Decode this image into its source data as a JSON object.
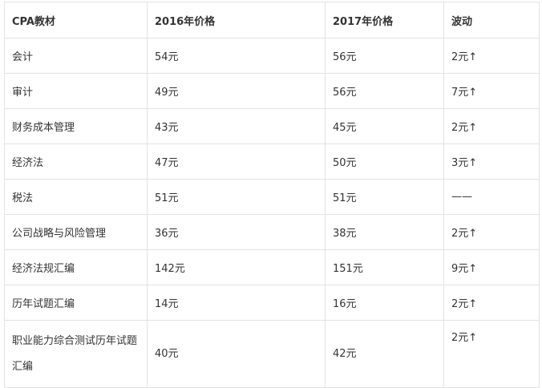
{
  "table": {
    "header": [
      "CPA教材",
      "2016年价格",
      "2017年价格",
      "波动"
    ],
    "rows": [
      [
        "会计",
        "54元",
        "56元",
        "2元↑"
      ],
      [
        "审计",
        "49元",
        "56元",
        "7元↑"
      ],
      [
        "财务成本管理",
        "43元",
        "45元",
        "2元↑"
      ],
      [
        "经济法",
        "47元",
        "50元",
        "3元↑"
      ],
      [
        "税法",
        "51元",
        "51元",
        "——"
      ],
      [
        "公司战略与风险管理",
        "36元",
        "38元",
        "2元↑"
      ],
      [
        "经济法规汇编",
        "142元",
        "151元",
        "9元↑"
      ],
      [
        "历年试题汇编",
        "14元",
        "16元",
        "2元↑"
      ],
      [
        "职业能力综合测试历年试题汇编",
        "40元",
        "42元",
        "2元↑"
      ]
    ]
  }
}
